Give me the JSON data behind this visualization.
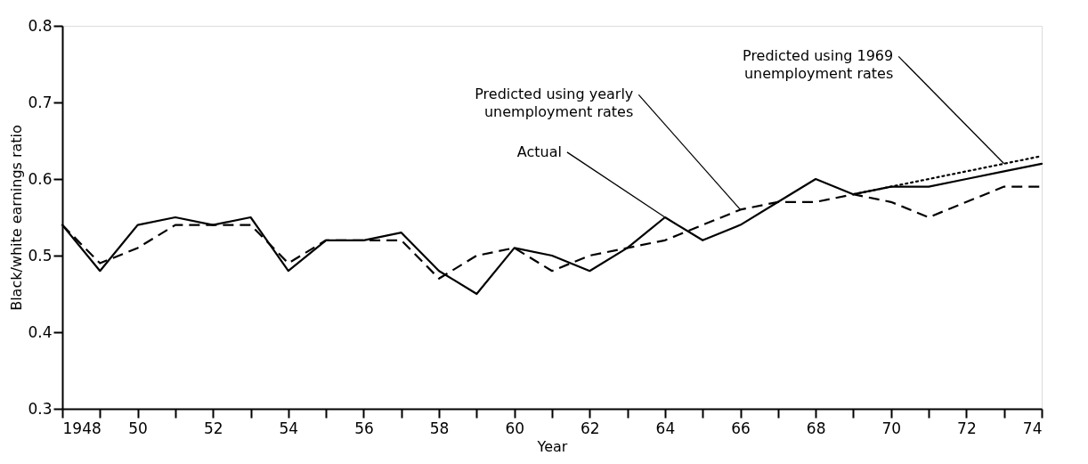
{
  "chart_data": {
    "type": "line",
    "xlabel": "Year",
    "ylabel": "Black/white earnings ratio",
    "xlim": [
      1948,
      1974
    ],
    "ylim": [
      0.3,
      0.8
    ],
    "xticks": [
      1948,
      {
        "value": 1949,
        "label": null
      },
      {
        "value": 1950,
        "label": "50"
      },
      {
        "value": 1951,
        "label": null
      },
      {
        "value": 1952,
        "label": "52"
      },
      {
        "value": 1953,
        "label": null
      },
      {
        "value": 1954,
        "label": "54"
      },
      {
        "value": 1955,
        "label": null
      },
      {
        "value": 1956,
        "label": "56"
      },
      {
        "value": 1957,
        "label": null
      },
      {
        "value": 1958,
        "label": "58"
      },
      {
        "value": 1959,
        "label": null
      },
      {
        "value": 1960,
        "label": "60"
      },
      {
        "value": 1961,
        "label": null
      },
      {
        "value": 1962,
        "label": "62"
      },
      {
        "value": 1963,
        "label": null
      },
      {
        "value": 1964,
        "label": "64"
      },
      {
        "value": 1965,
        "label": null
      },
      {
        "value": 1966,
        "label": "66"
      },
      {
        "value": 1967,
        "label": null
      },
      {
        "value": 1968,
        "label": "68"
      },
      {
        "value": 1969,
        "label": null
      },
      {
        "value": 1970,
        "label": "70"
      },
      {
        "value": 1971,
        "label": null
      },
      {
        "value": 1972,
        "label": "72"
      },
      {
        "value": 1973,
        "label": null
      },
      {
        "value": 1974,
        "label": "74"
      }
    ],
    "yticks": [
      0.3,
      0.4,
      0.5,
      0.6,
      0.7,
      0.8
    ],
    "x": [
      1948,
      1949,
      1950,
      1951,
      1952,
      1953,
      1954,
      1955,
      1956,
      1957,
      1958,
      1959,
      1960,
      1961,
      1962,
      1963,
      1964,
      1965,
      1966,
      1967,
      1968,
      1969,
      1970,
      1971,
      1972,
      1973,
      1974
    ],
    "grid": false,
    "series": [
      {
        "name": "Actual",
        "color": "#000000",
        "line_style": "solid",
        "values": [
          0.54,
          0.48,
          0.54,
          0.55,
          0.54,
          0.55,
          0.48,
          0.52,
          0.52,
          0.53,
          0.48,
          0.45,
          0.51,
          0.5,
          0.48,
          0.51,
          0.55,
          0.52,
          0.54,
          0.57,
          0.6,
          0.58,
          0.59,
          0.59,
          0.6,
          0.61,
          0.62
        ]
      },
      {
        "name": "Predicted using yearly unemployment rates",
        "color": "#000000",
        "line_style": "dashed",
        "values": [
          0.54,
          0.49,
          0.51,
          0.54,
          0.54,
          0.54,
          0.49,
          0.52,
          0.52,
          0.52,
          0.47,
          0.5,
          0.51,
          0.48,
          0.5,
          0.51,
          0.52,
          0.54,
          0.56,
          0.57,
          0.57,
          0.58,
          0.57,
          0.55,
          0.57,
          0.59,
          0.59
        ]
      },
      {
        "name": "Predicted using 1969 unemployment rates",
        "color": "#000000",
        "line_style": "dotted",
        "x": [
          1969,
          1970,
          1971,
          1972,
          1973,
          1974
        ],
        "values": [
          0.58,
          0.59,
          0.6,
          0.61,
          0.62,
          0.63
        ]
      }
    ]
  }
}
